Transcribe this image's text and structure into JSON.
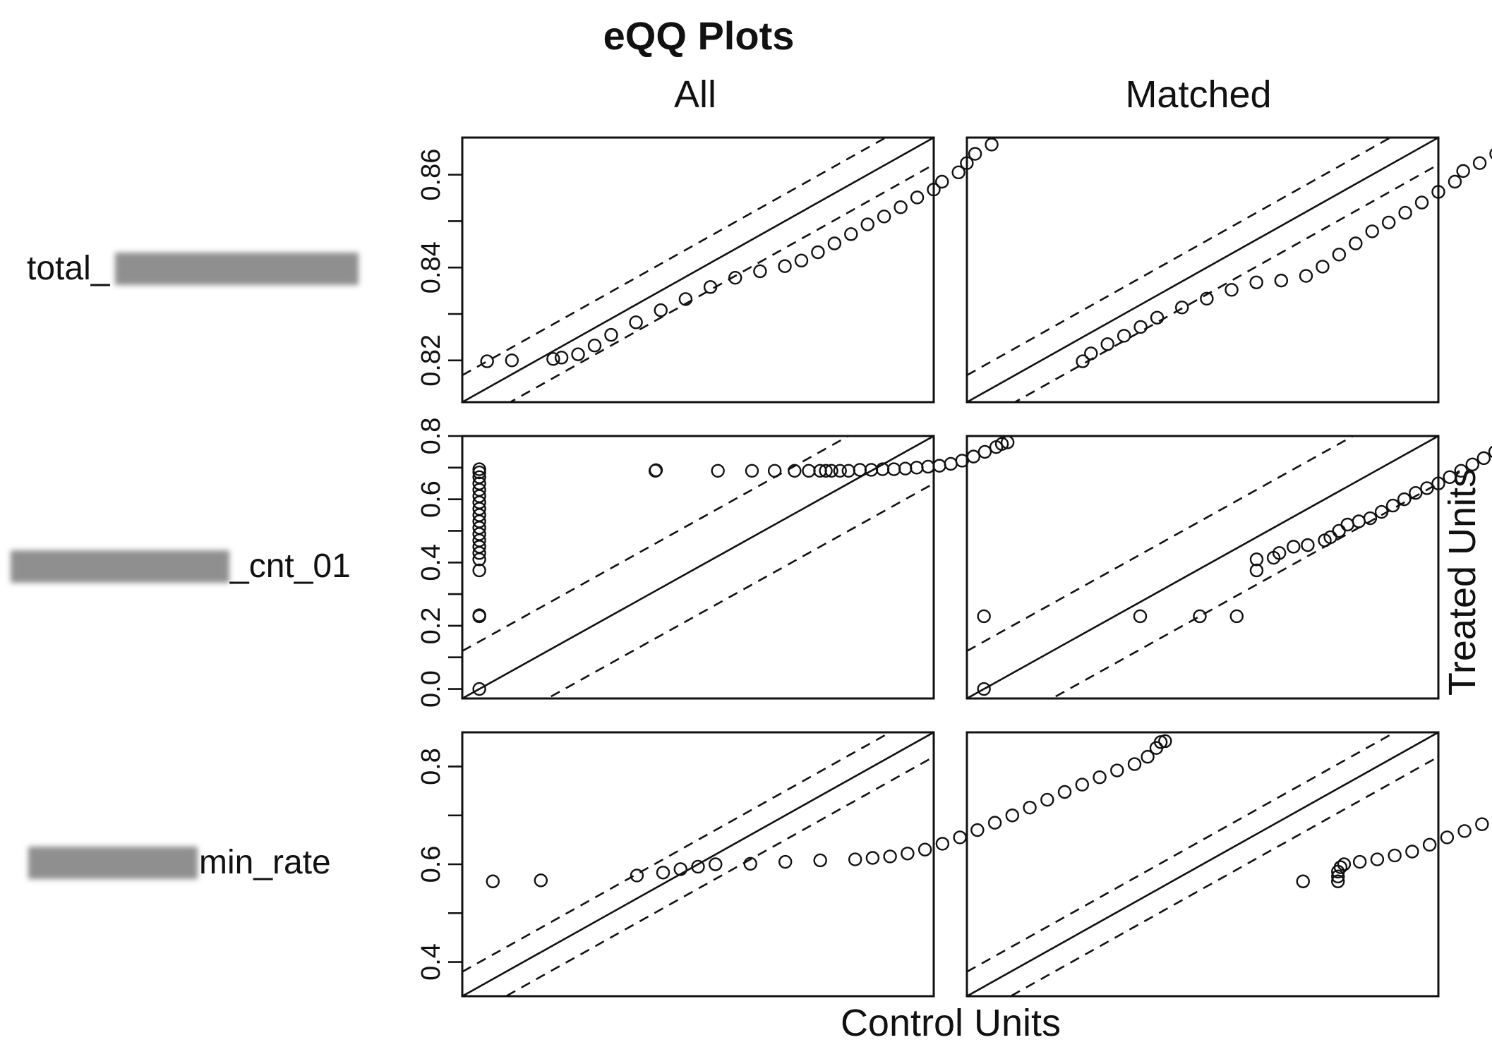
{
  "chart_data": {
    "type": "scatter",
    "title": "eQQ Plots",
    "columns": [
      "All",
      "Matched"
    ],
    "xlabel": "Control Units",
    "ylabel": "Treated Units",
    "rows": [
      {
        "label_visible": "total_",
        "ylim": [
          0.811,
          0.868
        ],
        "yticks": [
          0.82,
          0.84,
          0.86
        ],
        "ytick_labels": [
          "0.82",
          "0.84",
          "0.86"
        ],
        "band": 0.0058,
        "panels": [
          {
            "name": "All",
            "points": [
              [
                0.814,
                0.8198
              ],
              [
                0.817,
                0.82
              ],
              [
                0.822,
                0.8203
              ],
              [
                0.823,
                0.8206
              ],
              [
                0.825,
                0.8213
              ],
              [
                0.827,
                0.8232
              ],
              [
                0.829,
                0.8255
              ],
              [
                0.832,
                0.8282
              ],
              [
                0.835,
                0.8308
              ],
              [
                0.838,
                0.8332
              ],
              [
                0.841,
                0.8358
              ],
              [
                0.844,
                0.8378
              ],
              [
                0.847,
                0.8392
              ],
              [
                0.85,
                0.8403
              ],
              [
                0.852,
                0.8415
              ],
              [
                0.854,
                0.8433
              ],
              [
                0.856,
                0.8452
              ],
              [
                0.858,
                0.8472
              ],
              [
                0.86,
                0.8493
              ],
              [
                0.862,
                0.851
              ],
              [
                0.864,
                0.853
              ],
              [
                0.866,
                0.8551
              ],
              [
                0.868,
                0.8568
              ],
              [
                0.869,
                0.8585
              ],
              [
                0.871,
                0.8605
              ],
              [
                0.872,
                0.8625
              ],
              [
                0.873,
                0.8645
              ],
              [
                0.875,
                0.8665
              ]
            ]
          },
          {
            "name": "Matched",
            "points": [
              [
                0.825,
                0.8198
              ],
              [
                0.826,
                0.8215
              ],
              [
                0.828,
                0.8235
              ],
              [
                0.83,
                0.8253
              ],
              [
                0.832,
                0.8272
              ],
              [
                0.834,
                0.8292
              ],
              [
                0.837,
                0.8314
              ],
              [
                0.84,
                0.8333
              ],
              [
                0.843,
                0.8352
              ],
              [
                0.846,
                0.8368
              ],
              [
                0.849,
                0.8372
              ],
              [
                0.852,
                0.8382
              ],
              [
                0.854,
                0.8402
              ],
              [
                0.856,
                0.8428
              ],
              [
                0.858,
                0.8452
              ],
              [
                0.86,
                0.8478
              ],
              [
                0.862,
                0.8497
              ],
              [
                0.864,
                0.8518
              ],
              [
                0.866,
                0.854
              ],
              [
                0.868,
                0.8563
              ],
              [
                0.87,
                0.8585
              ],
              [
                0.871,
                0.8608
              ],
              [
                0.873,
                0.8625
              ],
              [
                0.875,
                0.8645
              ],
              [
                0.876,
                0.8655
              ]
            ]
          }
        ]
      },
      {
        "label_visible": "_cnt_01",
        "ylim": [
          -0.03,
          0.8
        ],
        "yticks": [
          0,
          0.2,
          0.4,
          0.6,
          0.8
        ],
        "ytick_labels": [
          "0.0",
          "0.2",
          "0.4",
          "0.6",
          "0.8"
        ],
        "band": 0.15,
        "panels": [
          {
            "name": "All",
            "points": [
              [
                0,
                0
              ],
              [
                0,
                0.23
              ],
              [
                0,
                0.233
              ],
              [
                0,
                0.375
              ],
              [
                0,
                0.41
              ],
              [
                0,
                0.43
              ],
              [
                0,
                0.45
              ],
              [
                0,
                0.47
              ],
              [
                0,
                0.49
              ],
              [
                0,
                0.51
              ],
              [
                0,
                0.53
              ],
              [
                0,
                0.55
              ],
              [
                0,
                0.57
              ],
              [
                0,
                0.59
              ],
              [
                0,
                0.61
              ],
              [
                0,
                0.63
              ],
              [
                0,
                0.65
              ],
              [
                0,
                0.67
              ],
              [
                0,
                0.685
              ],
              [
                0,
                0.695
              ],
              [
                0.31,
                0.69
              ],
              [
                0.311,
                0.692
              ],
              [
                0.42,
                0.69
              ],
              [
                0.48,
                0.69
              ],
              [
                0.52,
                0.69
              ],
              [
                0.555,
                0.69
              ],
              [
                0.58,
                0.69
              ],
              [
                0.6,
                0.69
              ],
              [
                0.61,
                0.69
              ],
              [
                0.62,
                0.69
              ],
              [
                0.635,
                0.69
              ],
              [
                0.65,
                0.69
              ],
              [
                0.67,
                0.693
              ],
              [
                0.69,
                0.693
              ],
              [
                0.71,
                0.695
              ],
              [
                0.73,
                0.695
              ],
              [
                0.75,
                0.697
              ],
              [
                0.77,
                0.7
              ],
              [
                0.79,
                0.703
              ],
              [
                0.81,
                0.706
              ],
              [
                0.83,
                0.712
              ],
              [
                0.85,
                0.722
              ],
              [
                0.87,
                0.735
              ],
              [
                0.89,
                0.75
              ],
              [
                0.91,
                0.765
              ],
              [
                0.92,
                0.775
              ],
              [
                0.93,
                0.78
              ]
            ]
          },
          {
            "name": "Matched",
            "points": [
              [
                0,
                0
              ],
              [
                0,
                0.23
              ],
              [
                0.275,
                0.23
              ],
              [
                0.38,
                0.23
              ],
              [
                0.445,
                0.23
              ],
              [
                0.48,
                0.375
              ],
              [
                0.48,
                0.41
              ],
              [
                0.51,
                0.415
              ],
              [
                0.52,
                0.43
              ],
              [
                0.545,
                0.45
              ],
              [
                0.57,
                0.455
              ],
              [
                0.6,
                0.47
              ],
              [
                0.61,
                0.48
              ],
              [
                0.625,
                0.5
              ],
              [
                0.64,
                0.52
              ],
              [
                0.66,
                0.53
              ],
              [
                0.68,
                0.54
              ],
              [
                0.7,
                0.56
              ],
              [
                0.72,
                0.58
              ],
              [
                0.74,
                0.6
              ],
              [
                0.76,
                0.62
              ],
              [
                0.78,
                0.635
              ],
              [
                0.8,
                0.65
              ],
              [
                0.82,
                0.67
              ],
              [
                0.84,
                0.69
              ],
              [
                0.86,
                0.71
              ],
              [
                0.88,
                0.73
              ],
              [
                0.9,
                0.75
              ],
              [
                0.92,
                0.77
              ],
              [
                0.93,
                0.78
              ]
            ]
          }
        ]
      },
      {
        "label_visible": "min_rate",
        "ylim": [
          0.33,
          0.87
        ],
        "yticks": [
          0.4,
          0.6,
          0.8
        ],
        "ytick_labels": [
          "0.4",
          "0.6",
          "0.8"
        ],
        "band": 0.05,
        "panels": [
          {
            "name": "All",
            "points": [
              [
                0.365,
                0.565
              ],
              [
                0.42,
                0.567
              ],
              [
                0.53,
                0.577
              ],
              [
                0.56,
                0.583
              ],
              [
                0.58,
                0.59
              ],
              [
                0.6,
                0.595
              ],
              [
                0.62,
                0.6
              ],
              [
                0.66,
                0.601
              ],
              [
                0.7,
                0.605
              ],
              [
                0.74,
                0.608
              ],
              [
                0.78,
                0.61
              ],
              [
                0.8,
                0.613
              ],
              [
                0.82,
                0.616
              ],
              [
                0.84,
                0.622
              ],
              [
                0.86,
                0.63
              ],
              [
                0.88,
                0.642
              ],
              [
                0.9,
                0.655
              ],
              [
                0.92,
                0.67
              ],
              [
                0.94,
                0.685
              ],
              [
                0.96,
                0.7
              ],
              [
                0.98,
                0.716
              ],
              [
                1.0,
                0.732
              ],
              [
                1.02,
                0.748
              ],
              [
                1.04,
                0.763
              ],
              [
                1.06,
                0.778
              ],
              [
                1.08,
                0.792
              ],
              [
                1.1,
                0.805
              ],
              [
                1.115,
                0.82
              ],
              [
                1.125,
                0.838
              ],
              [
                1.13,
                0.85
              ],
              [
                1.135,
                0.852
              ]
            ]
          },
          {
            "name": "Matched",
            "points": [
              [
                0.715,
                0.565
              ],
              [
                0.755,
                0.565
              ],
              [
                0.755,
                0.575
              ],
              [
                0.755,
                0.585
              ],
              [
                0.758,
                0.594
              ],
              [
                0.762,
                0.6
              ],
              [
                0.78,
                0.605
              ],
              [
                0.8,
                0.61
              ],
              [
                0.82,
                0.618
              ],
              [
                0.84,
                0.626
              ],
              [
                0.86,
                0.64
              ],
              [
                0.88,
                0.655
              ],
              [
                0.9,
                0.668
              ],
              [
                0.92,
                0.682
              ],
              [
                0.94,
                0.696
              ],
              [
                0.96,
                0.712
              ],
              [
                0.98,
                0.728
              ],
              [
                1.0,
                0.744
              ],
              [
                1.02,
                0.76
              ],
              [
                1.04,
                0.776
              ],
              [
                1.06,
                0.79
              ],
              [
                1.08,
                0.805
              ],
              [
                1.1,
                0.818
              ],
              [
                1.12,
                0.832
              ],
              [
                1.135,
                0.848
              ],
              [
                1.14,
                0.852
              ]
            ]
          }
        ]
      }
    ]
  }
}
